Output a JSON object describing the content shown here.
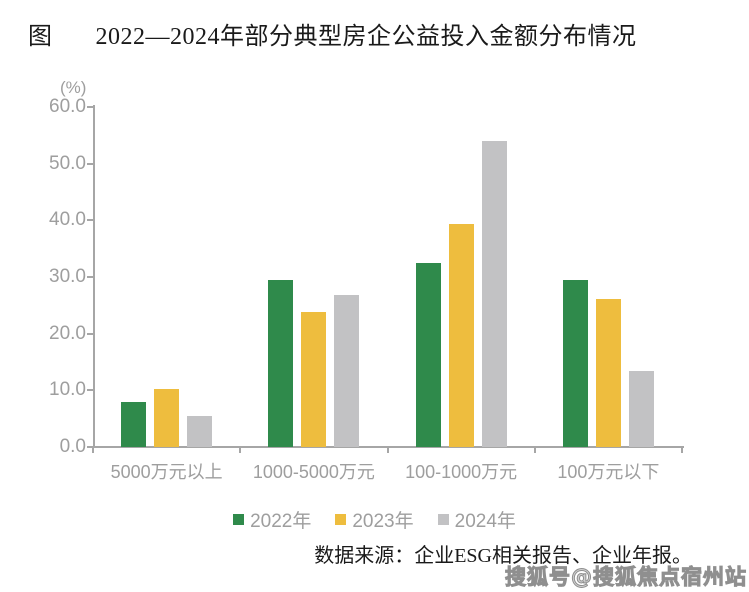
{
  "figure": {
    "label": "图",
    "title": "2022—2024年部分典型房企公益投入金额分布情况"
  },
  "chart_data": {
    "type": "bar",
    "title": "2022—2024年部分典型房企公益投入金额分布情况",
    "unit_label": "(%)",
    "categories": [
      "5000万元以上",
      "1000-5000万元",
      "100-1000万元",
      "100万元以下"
    ],
    "series": [
      {
        "name": "2022年",
        "color": "#2F8A4B",
        "values": [
          8.0,
          29.5,
          32.4,
          29.5
        ]
      },
      {
        "name": "2023年",
        "color": "#EEBD3E",
        "values": [
          10.3,
          23.8,
          39.3,
          26.2
        ]
      },
      {
        "name": "2024年",
        "color": "#C2C2C4",
        "values": [
          5.4,
          26.9,
          54.0,
          13.4
        ]
      }
    ],
    "ylim": [
      0,
      60
    ],
    "ytick_step": 10,
    "ytick_labels": [
      "0.0",
      "10.0",
      "20.0",
      "30.0",
      "40.0",
      "50.0",
      "60.0"
    ],
    "grid": false,
    "legend_position": "bottom"
  },
  "source_note": "数据来源：企业ESG相关报告、企业年报。",
  "watermark": "搜狐号@搜狐焦点宿州站",
  "colors": {
    "axis": "#A6A6A6",
    "tick_label_text": "#9E9E9E",
    "title_text": "#1A1A1A",
    "series_2022": "#2F8A4B",
    "series_2023": "#EEBD3E",
    "series_2024": "#C2C2C4"
  }
}
